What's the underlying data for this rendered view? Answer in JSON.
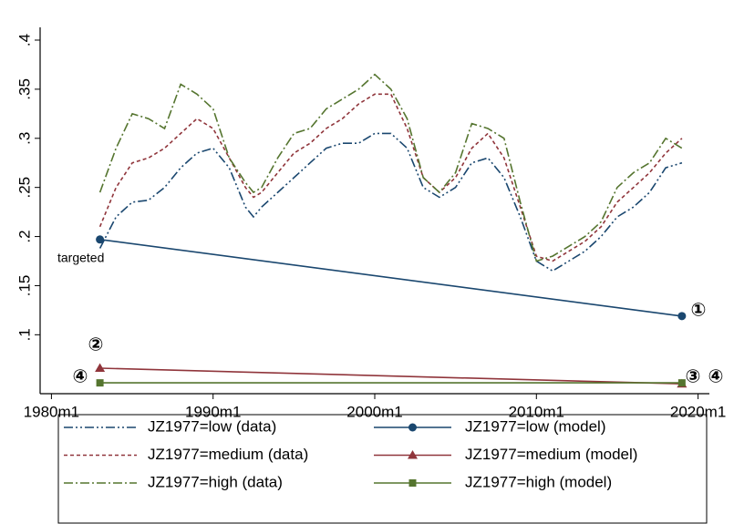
{
  "chart_data": {
    "type": "line",
    "xlim": [
      1979.3,
      2020.7
    ],
    "xticks": [
      {
        "value": 1980,
        "label": "1980m1"
      },
      {
        "value": 1990,
        "label": "1990m1"
      },
      {
        "value": 2000,
        "label": "2000m1"
      },
      {
        "value": 2010,
        "label": "2010m1"
      },
      {
        "value": 2020,
        "label": "2020m1"
      }
    ],
    "ylim": [
      0.04,
      0.413
    ],
    "yticks": [
      {
        "value": 0.1,
        "label": ".1"
      },
      {
        "value": 0.15,
        "label": ".15"
      },
      {
        "value": 0.2,
        "label": ".2"
      },
      {
        "value": 0.25,
        "label": ".25"
      },
      {
        "value": 0.3,
        "label": ".3"
      },
      {
        "value": 0.35,
        "label": ".35"
      },
      {
        "value": 0.4,
        "label": ".4"
      }
    ],
    "grid": false,
    "legend": "bottom",
    "annotations": [
      "targeted",
      "①",
      "②",
      "③",
      "④",
      "④"
    ],
    "series": [
      {
        "name": "JZ1977=low (data)",
        "color": "#1a476f",
        "line_style": "dashdotdot",
        "x": [
          1983,
          1984,
          1985,
          1986,
          1987,
          1988,
          1989,
          1990,
          1991,
          1992,
          1992.5,
          1993,
          1994,
          1995,
          1996,
          1997,
          1998,
          1999,
          2000,
          2001,
          2002,
          2003,
          2004,
          2005,
          2006,
          2007,
          2008,
          2009,
          2010,
          2011,
          2012,
          2013,
          2014,
          2015,
          2016,
          2017,
          2018,
          2019
        ],
        "values": [
          0.188,
          0.22,
          0.235,
          0.237,
          0.25,
          0.27,
          0.285,
          0.29,
          0.27,
          0.23,
          0.22,
          0.23,
          0.245,
          0.26,
          0.275,
          0.29,
          0.295,
          0.295,
          0.305,
          0.305,
          0.29,
          0.25,
          0.24,
          0.25,
          0.275,
          0.28,
          0.26,
          0.22,
          0.175,
          0.165,
          0.175,
          0.185,
          0.2,
          0.22,
          0.23,
          0.245,
          0.27,
          0.275
        ]
      },
      {
        "name": "JZ1977=low (model)",
        "color": "#1a476f",
        "line_style": "solid",
        "marker": "circle",
        "x": [
          1983,
          2019
        ],
        "values": [
          0.197,
          0.119
        ]
      },
      {
        "name": "JZ1977=medium (data)",
        "color": "#90353b",
        "line_style": "dash",
        "x": [
          1983,
          1984,
          1985,
          1986,
          1987,
          1988,
          1989,
          1990,
          1991,
          1992,
          1992.5,
          1993,
          1994,
          1995,
          1996,
          1997,
          1998,
          1999,
          2000,
          2001,
          2002,
          2003,
          2004,
          2005,
          2006,
          2007,
          2008,
          2009,
          2010,
          2011,
          2012,
          2013,
          2014,
          2015,
          2016,
          2017,
          2018,
          2019
        ],
        "values": [
          0.21,
          0.25,
          0.275,
          0.28,
          0.29,
          0.305,
          0.32,
          0.31,
          0.28,
          0.25,
          0.24,
          0.245,
          0.265,
          0.285,
          0.295,
          0.31,
          0.32,
          0.335,
          0.345,
          0.345,
          0.31,
          0.26,
          0.245,
          0.26,
          0.29,
          0.305,
          0.28,
          0.23,
          0.18,
          0.175,
          0.185,
          0.195,
          0.21,
          0.235,
          0.25,
          0.265,
          0.285,
          0.3
        ]
      },
      {
        "name": "JZ1977=medium (model)",
        "color": "#90353b",
        "line_style": "solid",
        "marker": "triangle",
        "x": [
          1983,
          2019
        ],
        "values": [
          0.066,
          0.05
        ]
      },
      {
        "name": "JZ1977=high (data)",
        "color": "#55752f",
        "line_style": "dashdot",
        "x": [
          1983,
          1984,
          1985,
          1986,
          1987,
          1988,
          1989,
          1990,
          1991,
          1992,
          1992.5,
          1993,
          1994,
          1995,
          1996,
          1997,
          1998,
          1999,
          2000,
          2001,
          2002,
          2003,
          2004,
          2005,
          2006,
          2007,
          2008,
          2009,
          2010,
          2011,
          2012,
          2013,
          2014,
          2015,
          2016,
          2017,
          2018,
          2019
        ],
        "values": [
          0.245,
          0.29,
          0.325,
          0.32,
          0.31,
          0.355,
          0.345,
          0.33,
          0.28,
          0.255,
          0.245,
          0.25,
          0.28,
          0.305,
          0.31,
          0.33,
          0.34,
          0.35,
          0.365,
          0.35,
          0.32,
          0.26,
          0.245,
          0.265,
          0.315,
          0.31,
          0.3,
          0.235,
          0.175,
          0.18,
          0.19,
          0.2,
          0.215,
          0.25,
          0.265,
          0.275,
          0.3,
          0.29
        ]
      },
      {
        "name": "JZ1977=high (model)",
        "color": "#55752f",
        "line_style": "solid",
        "marker": "square",
        "x": [
          1983,
          2019
        ],
        "values": [
          0.051,
          0.051
        ]
      }
    ]
  }
}
